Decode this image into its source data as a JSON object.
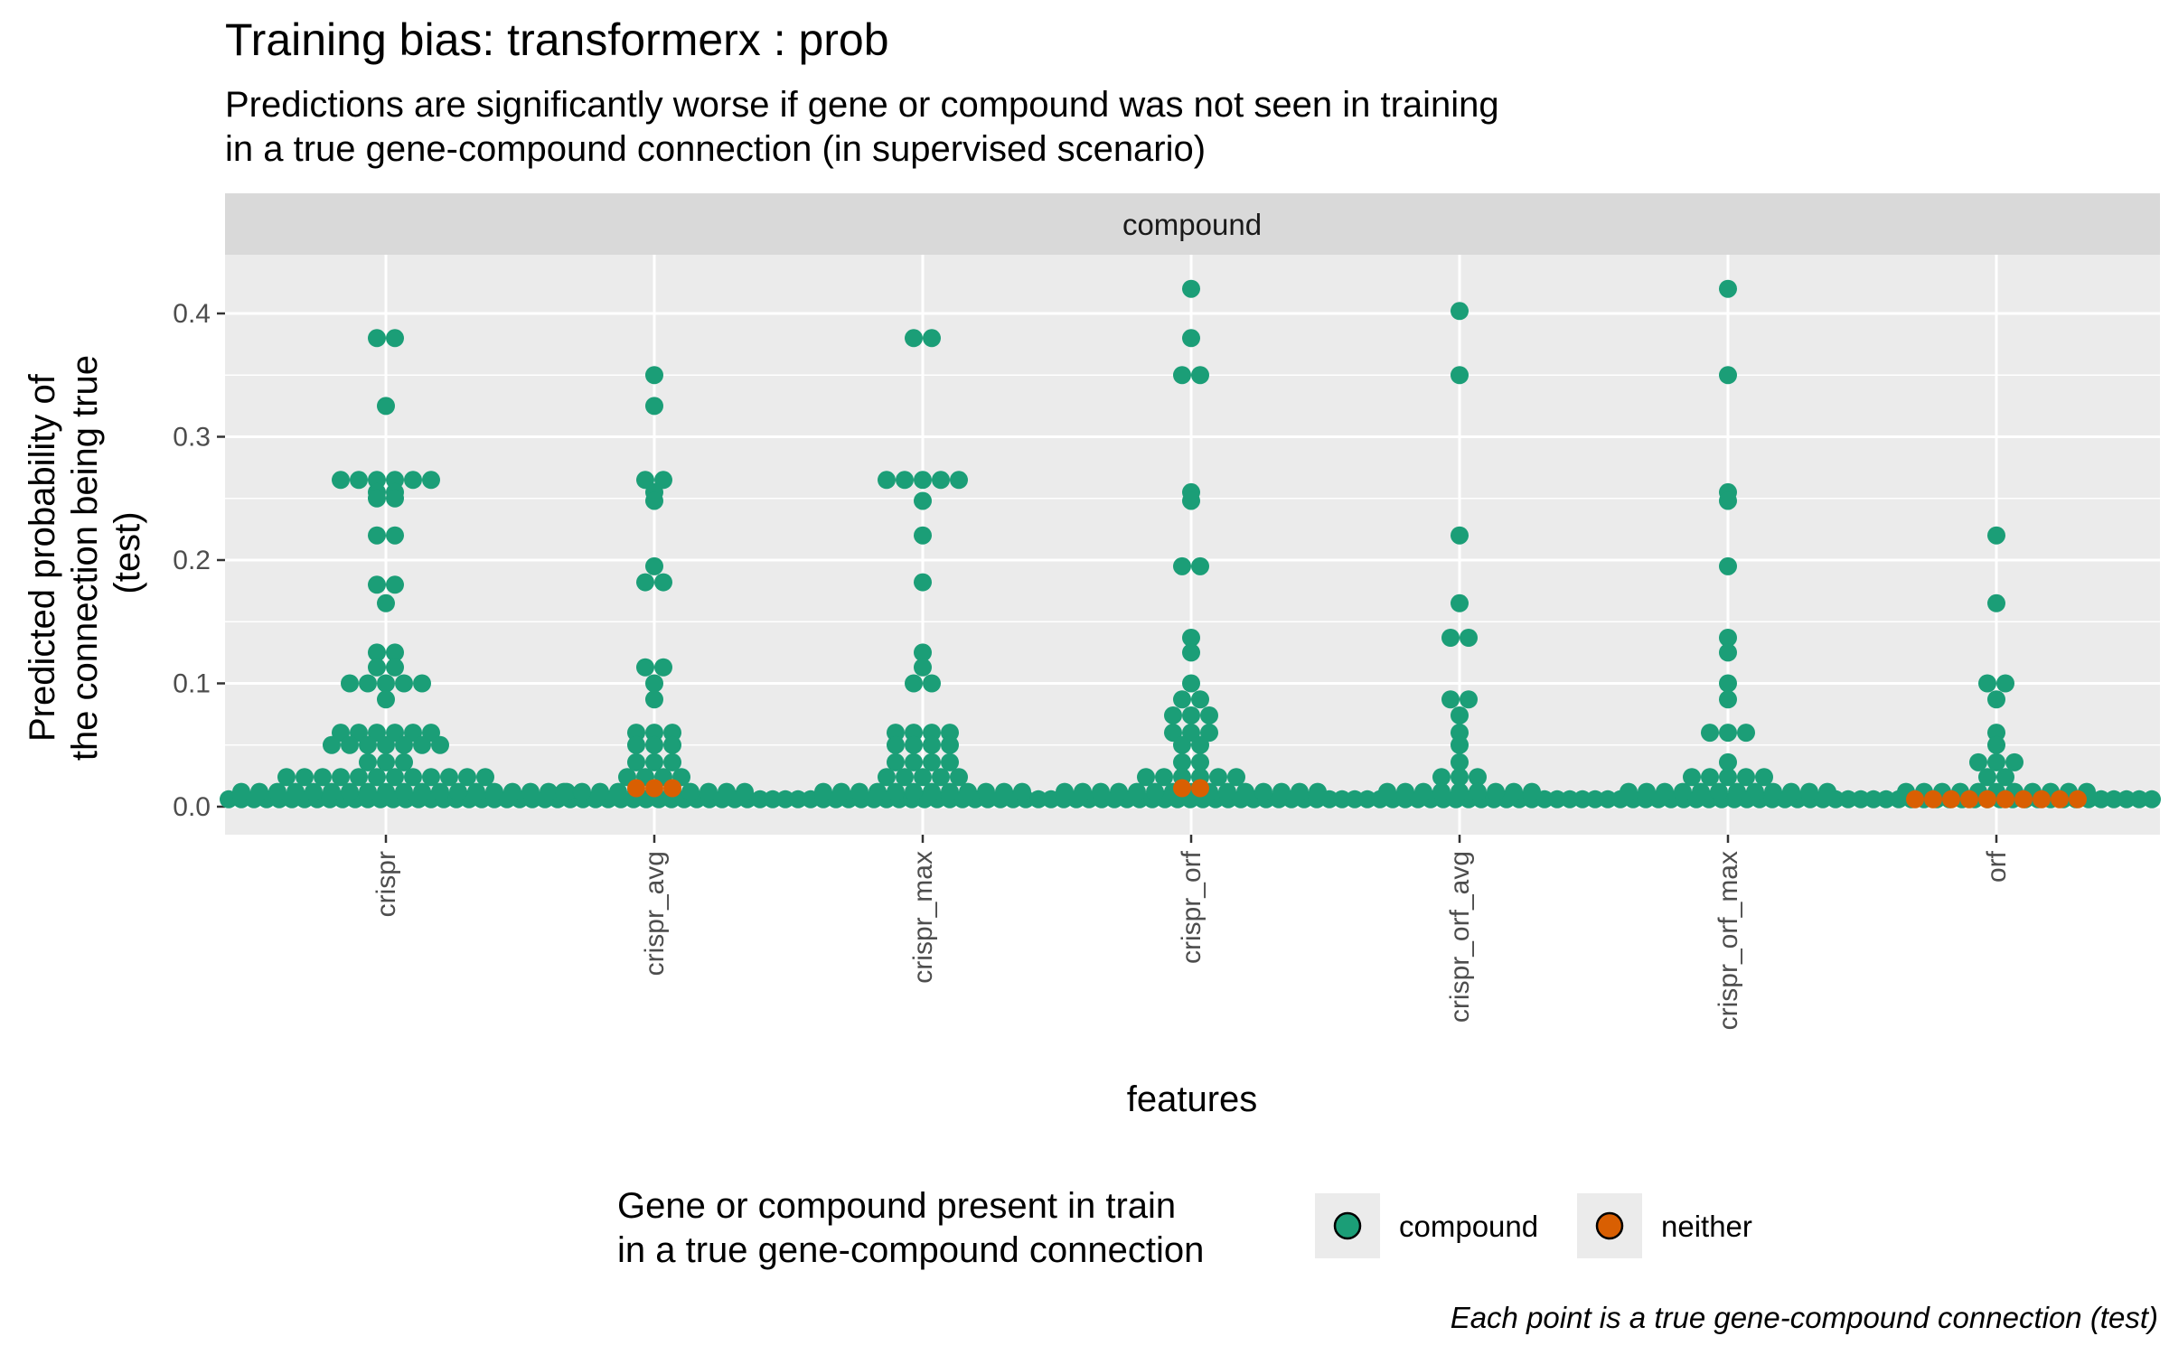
{
  "chart_data": {
    "type": "dotplot",
    "title": "Training bias: transformerx : prob",
    "subtitle_lines": [
      "Predictions are significantly worse if gene or compound was not seen in training",
      "in a true gene-compound connection (in supervised scenario)"
    ],
    "facet": "compound",
    "xlabel": "features",
    "ylabel_lines": [
      "Predicted probability of",
      "the connection being true",
      "(test)"
    ],
    "ylim": [
      0,
      0.45
    ],
    "y_ticks": [
      0.0,
      0.1,
      0.2,
      0.3,
      0.4
    ],
    "y_tick_labels": [
      "0.0",
      "0.1",
      "0.2",
      "0.3",
      "0.4"
    ],
    "categories": [
      "crispr",
      "crispr_avg",
      "crispr_max",
      "crispr_orf",
      "crispr_orf_avg",
      "crispr_orf_max",
      "orf"
    ],
    "grid": true,
    "legend": {
      "position": "bottom",
      "title_lines": [
        "Gene or compound present in train",
        "in a true gene-compound connection"
      ],
      "entries": [
        {
          "label": "compound",
          "color": "#1b9e77"
        },
        {
          "label": "neither",
          "color": "#d95f02"
        }
      ]
    },
    "caption": "Each point is a true gene-compound connection (test)",
    "series": [
      {
        "name": "compound",
        "color": "#1b9e77",
        "values_by_category": {
          "crispr": [
            0.38,
            0.38,
            0.325,
            0.265,
            0.265,
            0.265,
            0.265,
            0.265,
            0.265,
            0.255,
            0.255,
            0.25,
            0.25,
            0.22,
            0.22,
            0.18,
            0.18,
            0.165,
            0.125,
            0.125,
            0.113,
            0.113,
            0.1,
            0.1,
            0.1,
            0.1,
            0.1,
            0.087,
            0.06,
            0.06,
            0.06,
            0.06,
            0.06,
            0.06,
            0.05,
            0.05,
            0.05,
            0.05,
            0.05,
            0.05,
            0.05,
            0.036,
            0.036,
            0.036,
            0.024,
            0.024,
            0.024,
            0.024,
            0.024,
            0.024,
            0.024,
            0.024,
            0.024,
            0.024,
            0.024,
            0.024,
            0.012,
            0.012,
            0.012,
            0.012,
            0.012,
            0.012,
            0.012,
            0.012,
            0.012,
            0.012,
            0.012,
            0.012,
            0.012,
            0.012,
            0.012,
            0.012,
            0.012,
            0.012,
            0.012,
            0.012,
            0.012
          ],
          "crispr_avg": [
            0.35,
            0.325,
            0.265,
            0.265,
            0.255,
            0.248,
            0.195,
            0.182,
            0.182,
            0.113,
            0.113,
            0.1,
            0.087,
            0.06,
            0.06,
            0.06,
            0.05,
            0.05,
            0.05,
            0.036,
            0.036,
            0.036,
            0.024,
            0.024,
            0.024,
            0.024,
            0.012,
            0.012,
            0.012,
            0.012,
            0.012,
            0.012,
            0.012,
            0.012,
            0.012,
            0.012,
            0.012
          ],
          "crispr_max": [
            0.38,
            0.38,
            0.265,
            0.265,
            0.265,
            0.265,
            0.265,
            0.248,
            0.22,
            0.182,
            0.125,
            0.113,
            0.1,
            0.1,
            0.06,
            0.06,
            0.06,
            0.06,
            0.05,
            0.05,
            0.05,
            0.05,
            0.036,
            0.036,
            0.036,
            0.036,
            0.024,
            0.024,
            0.024,
            0.024,
            0.024,
            0.012,
            0.012,
            0.012,
            0.012,
            0.012,
            0.012,
            0.012,
            0.012,
            0.012,
            0.012,
            0.012,
            0.012
          ],
          "crispr_orf": [
            0.42,
            0.38,
            0.35,
            0.35,
            0.255,
            0.248,
            0.195,
            0.195,
            0.137,
            0.125,
            0.1,
            0.087,
            0.087,
            0.074,
            0.074,
            0.074,
            0.06,
            0.06,
            0.06,
            0.05,
            0.05,
            0.036,
            0.036,
            0.024,
            0.024,
            0.024,
            0.024,
            0.024,
            0.024,
            0.012,
            0.012,
            0.012,
            0.012,
            0.012,
            0.012,
            0.012,
            0.012,
            0.012,
            0.012,
            0.012,
            0.012,
            0.012,
            0.012,
            0.012
          ],
          "crispr_orf_avg": [
            0.402,
            0.35,
            0.22,
            0.165,
            0.137,
            0.137,
            0.087,
            0.087,
            0.074,
            0.06,
            0.05,
            0.036,
            0.024,
            0.024,
            0.024,
            0.012,
            0.012,
            0.012,
            0.012,
            0.012,
            0.012,
            0.012,
            0.012,
            0.012
          ],
          "crispr_orf_max": [
            0.42,
            0.35,
            0.255,
            0.248,
            0.195,
            0.137,
            0.125,
            0.1,
            0.087,
            0.06,
            0.06,
            0.06,
            0.036,
            0.024,
            0.024,
            0.024,
            0.024,
            0.024,
            0.012,
            0.012,
            0.012,
            0.012,
            0.012,
            0.012,
            0.012,
            0.012,
            0.012,
            0.012,
            0.012,
            0.012
          ],
          "orf": [
            0.22,
            0.165,
            0.1,
            0.1,
            0.087,
            0.06,
            0.05,
            0.036,
            0.036,
            0.036,
            0.024,
            0.024,
            0.012,
            0.012,
            0.012,
            0.012,
            0.012,
            0.012,
            0.012,
            0.012,
            0.012,
            0.012,
            0.012
          ]
        }
      },
      {
        "name": "neither",
        "color": "#d95f02",
        "values_by_category": {
          "crispr": [],
          "crispr_avg": [
            0.015,
            0.015,
            0.015
          ],
          "crispr_max": [],
          "crispr_orf": [
            0.015,
            0.015
          ],
          "crispr_orf_avg": [],
          "crispr_orf_max": [],
          "orf": [
            0.006,
            0.006,
            0.006,
            0.006,
            0.006,
            0.006,
            0.006,
            0.006,
            0.006,
            0.006
          ]
        }
      }
    ],
    "near_zero_band": {
      "value": 0.006,
      "color": "#1b9e77"
    }
  }
}
